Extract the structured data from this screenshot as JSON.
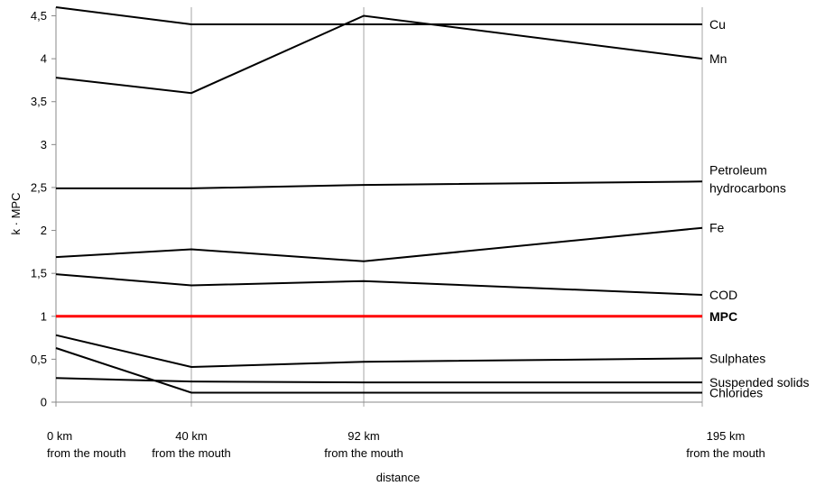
{
  "chart_data": {
    "type": "line",
    "x_categories": [
      {
        "line1": "0 km",
        "line2": "from the mouth"
      },
      {
        "line1": "40 km",
        "line2": "from the mouth"
      },
      {
        "line1": "92 km",
        "line2": "from the mouth"
      },
      {
        "line1": "195 km",
        "line2": "from the mouth"
      }
    ],
    "xlabel": "distance",
    "ylabel": "k · MPC",
    "ylim": [
      0,
      4.6
    ],
    "yticks": [
      "0",
      "0,5",
      "1",
      "1,5",
      "2",
      "2,5",
      "3",
      "3,5",
      "4",
      "4,5"
    ],
    "ytick_values": [
      0,
      0.5,
      1,
      1.5,
      2,
      2.5,
      3,
      3.5,
      4,
      4.5
    ],
    "vertical_gridlines": true,
    "series": [
      {
        "name": "Cu",
        "values": [
          4.6,
          4.4,
          4.4,
          4.4
        ],
        "color": "#000000"
      },
      {
        "name": "Mn",
        "values": [
          3.78,
          3.6,
          4.5,
          4.0
        ],
        "color": "#000000"
      },
      {
        "name": "Petroleum hydrocarbons",
        "label_lines": [
          "Petroleum",
          "hydrocarbons"
        ],
        "values": [
          2.49,
          2.49,
          2.53,
          2.57
        ],
        "color": "#000000"
      },
      {
        "name": "Fe",
        "values": [
          1.69,
          1.78,
          1.64,
          2.03
        ],
        "color": "#000000"
      },
      {
        "name": "COD",
        "values": [
          1.49,
          1.36,
          1.41,
          1.25
        ],
        "color": "#000000"
      },
      {
        "name": "MPC",
        "values": [
          1.0,
          1.0,
          1.0,
          1.0
        ],
        "color": "#ff0000",
        "bold": true
      },
      {
        "name": "Sulphates",
        "values": [
          0.78,
          0.41,
          0.47,
          0.51
        ],
        "color": "#000000"
      },
      {
        "name": "Suspended solids",
        "values": [
          0.28,
          0.24,
          0.23,
          0.23
        ],
        "color": "#000000"
      },
      {
        "name": "Chlorides",
        "values": [
          0.63,
          0.11,
          0.11,
          0.11
        ],
        "color": "#000000"
      }
    ]
  }
}
